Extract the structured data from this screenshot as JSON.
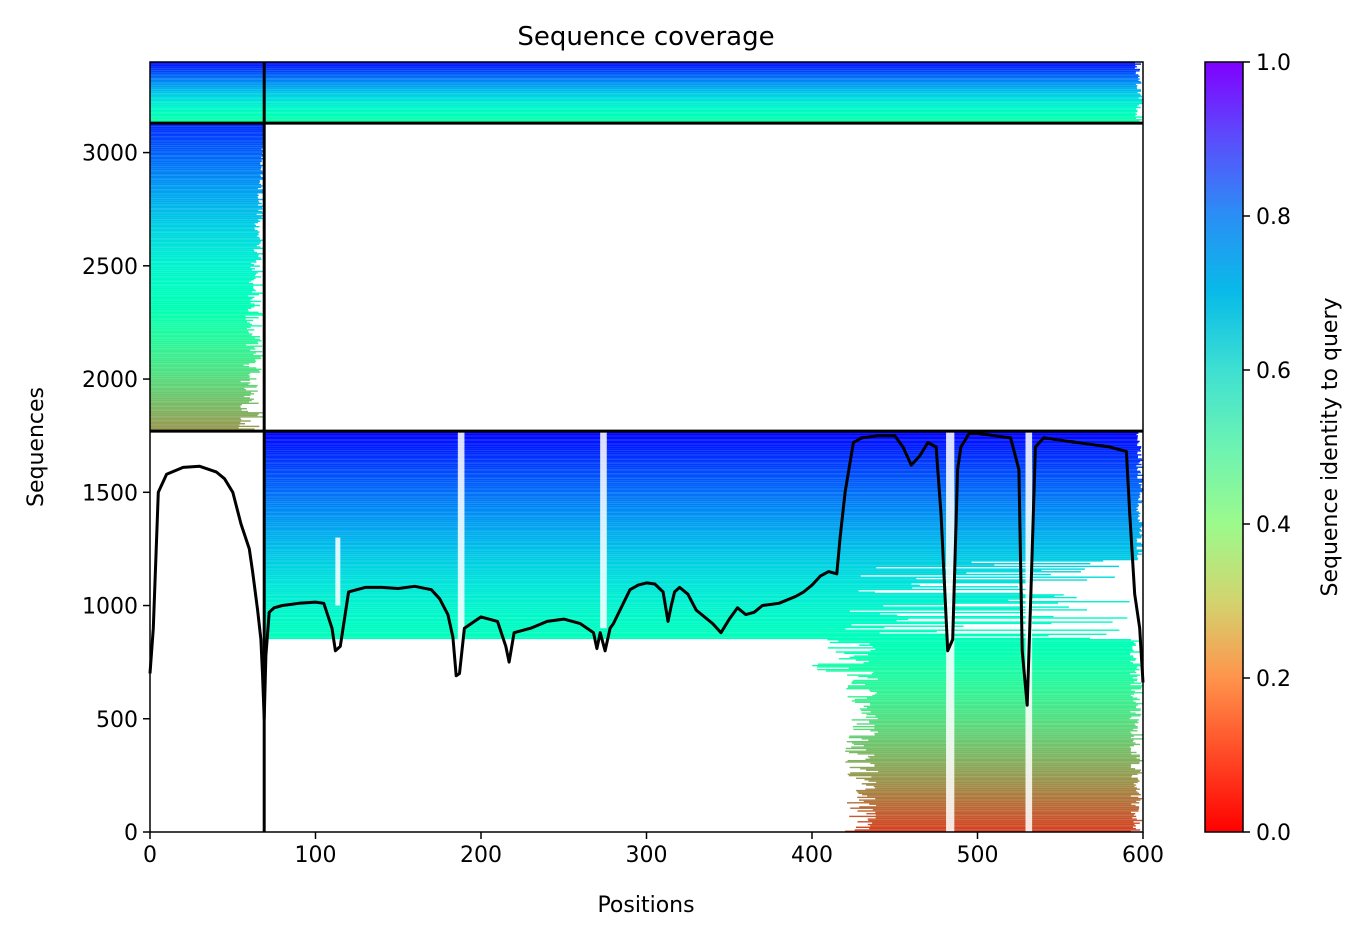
{
  "chart_data": {
    "type": "heatmap",
    "title": "Sequence coverage",
    "xlabel": "Positions",
    "ylabel": "Sequences",
    "xlim": [
      0,
      600
    ],
    "ylim": [
      0,
      3400
    ],
    "xticks": [
      0,
      100,
      200,
      300,
      400,
      500,
      600
    ],
    "yticks": [
      0,
      500,
      1000,
      1500,
      2000,
      2500,
      3000
    ],
    "colorbar": {
      "label": "Sequence identity to query",
      "range": [
        0.0,
        1.0
      ],
      "ticks": [
        "0.0",
        "0.2",
        "0.4",
        "0.6",
        "0.8",
        "1.0"
      ],
      "colormap": "rainbow_r"
    },
    "chain_boundary_x": 69,
    "block_boundaries_y": [
      1770,
      3130
    ],
    "blocks": [
      {
        "x_range": [
          69,
          600
        ],
        "y_range": [
          0,
          1770
        ],
        "identity_top": 1.0,
        "identity_bottom": 0.08
      },
      {
        "x_range": [
          0,
          69
        ],
        "y_range": [
          1770,
          3130
        ],
        "identity_top": 0.95,
        "identity_bottom": 0.2
      },
      {
        "x_range": [
          0,
          600
        ],
        "y_range": [
          3130,
          3400
        ],
        "identity_top": 1.0,
        "identity_bottom": 0.45
      }
    ],
    "coverage_line": {
      "x": [
        0,
        2,
        5,
        10,
        20,
        30,
        40,
        45,
        50,
        55,
        60,
        62,
        65,
        67,
        68,
        69,
        70,
        72,
        75,
        80,
        90,
        100,
        105,
        110,
        112,
        115,
        120,
        130,
        140,
        150,
        160,
        170,
        175,
        180,
        183,
        185,
        187,
        190,
        200,
        210,
        215,
        217,
        220,
        230,
        240,
        250,
        260,
        268,
        270,
        272,
        275,
        278,
        280,
        290,
        295,
        300,
        305,
        310,
        313,
        315,
        317,
        320,
        325,
        330,
        340,
        345,
        350,
        355,
        360,
        365,
        370,
        380,
        390,
        395,
        400,
        405,
        410,
        415,
        417,
        420,
        425,
        430,
        440,
        450,
        455,
        460,
        465,
        470,
        475,
        478,
        480,
        482,
        485,
        488,
        490,
        495,
        500,
        510,
        520,
        525,
        527,
        530,
        532,
        535,
        540,
        550,
        560,
        570,
        580,
        585,
        590,
        592,
        595,
        598,
        600
      ],
      "y": [
        700,
        900,
        1500,
        1580,
        1610,
        1615,
        1590,
        1560,
        1500,
        1360,
        1250,
        1150,
        980,
        850,
        700,
        500,
        780,
        970,
        990,
        1000,
        1010,
        1015,
        1010,
        900,
        800,
        820,
        1060,
        1080,
        1080,
        1075,
        1085,
        1070,
        1030,
        960,
        860,
        690,
        700,
        900,
        950,
        930,
        820,
        750,
        880,
        900,
        930,
        940,
        920,
        880,
        810,
        880,
        800,
        900,
        920,
        1070,
        1090,
        1100,
        1095,
        1060,
        930,
        1000,
        1060,
        1080,
        1050,
        980,
        920,
        880,
        940,
        990,
        960,
        970,
        1000,
        1010,
        1040,
        1060,
        1090,
        1130,
        1150,
        1140,
        1300,
        1500,
        1720,
        1740,
        1750,
        1750,
        1700,
        1620,
        1660,
        1720,
        1700,
        1400,
        1100,
        800,
        850,
        1600,
        1700,
        1760,
        1760,
        1750,
        1740,
        1600,
        800,
        560,
        1000,
        1700,
        1740,
        1730,
        1720,
        1710,
        1700,
        1690,
        1680,
        1400,
        1050,
        900,
        660
      ]
    }
  }
}
